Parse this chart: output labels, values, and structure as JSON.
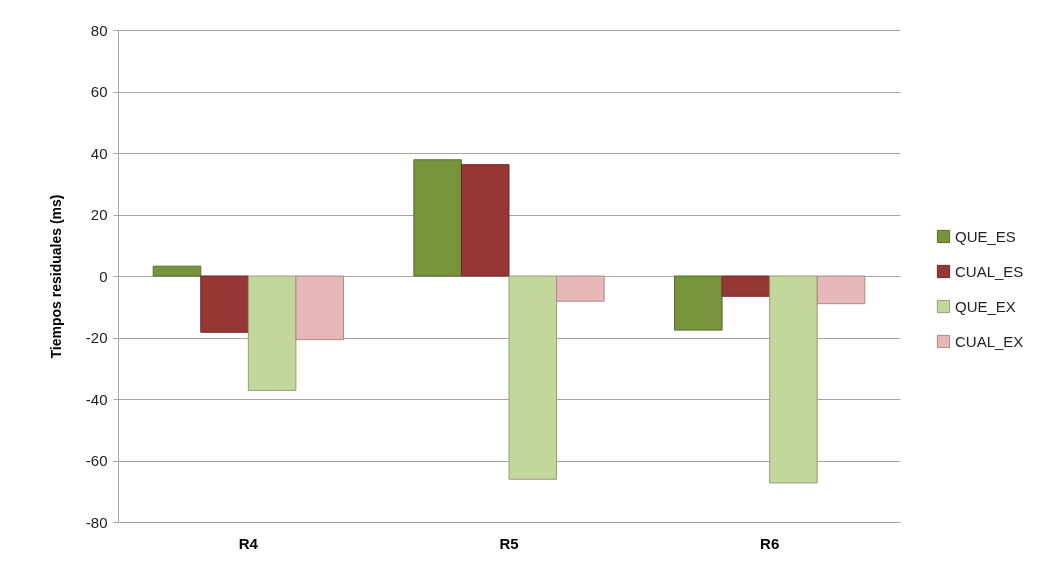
{
  "chart_data": {
    "type": "bar",
    "ylabel": "Tiempos residuales (ms)",
    "categories": [
      "R4",
      "R5",
      "R6"
    ],
    "series": [
      {
        "name": "QUE_ES",
        "color": "#77933c",
        "values": [
          3.2,
          37.8,
          -17.6
        ]
      },
      {
        "name": "CUAL_ES",
        "color": "#953735",
        "values": [
          -18.3,
          36.2,
          -6.6
        ]
      },
      {
        "name": "QUE_EX",
        "color": "#c3d69b",
        "values": [
          -37.2,
          -66.1,
          -67.3
        ]
      },
      {
        "name": "CUAL_EX",
        "color": "#e6b9b8",
        "values": [
          -20.7,
          -8.2,
          -9.0
        ]
      }
    ],
    "ylim": [
      -80,
      80
    ],
    "yticks": [
      -80,
      -60,
      -40,
      -20,
      0,
      20,
      40,
      60,
      80
    ],
    "grid": "y",
    "legend": "right"
  }
}
